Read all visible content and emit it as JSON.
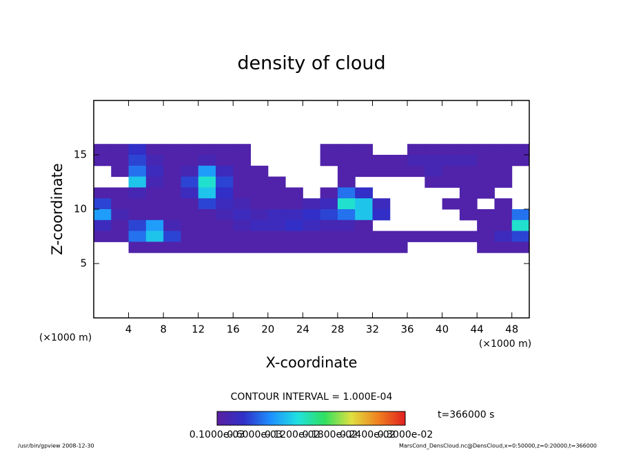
{
  "chart_data": {
    "type": "heatmap",
    "title": "density of cloud",
    "x_label": "X-coordinate",
    "y_label": "Z-coordinate",
    "x_unit": "(×1000 m)",
    "y_unit": "(×1000 m)",
    "contour_note": "CONTOUR INTERVAL = 1.000E-04",
    "time_note": "t=366000 s",
    "footer_left": "/usr/bin/gpview  2008-12-30",
    "footer_right": "MarsCond_DensCloud.nc@DensCloud,x=0:50000,z=0:20000,t=366000",
    "xlim": [
      0,
      50
    ],
    "xticks": [
      4,
      8,
      12,
      16,
      20,
      24,
      28,
      32,
      36,
      40,
      44,
      48
    ],
    "ylim": [
      0,
      20
    ],
    "yticks": [
      5,
      10,
      15
    ],
    "x": [
      1,
      3,
      5,
      7,
      9,
      11,
      13,
      15,
      17,
      19,
      21,
      23,
      25,
      27,
      29,
      31,
      33,
      35,
      37,
      39,
      41,
      43,
      45,
      47,
      49
    ],
    "y": [
      15.5,
      14.5,
      13.5,
      12.5,
      11.5,
      10.5,
      9.5,
      8.5,
      7.5,
      6.5
    ],
    "z": [
      [
        0.0002,
        0.0002,
        0.0005,
        0.0002,
        0.0002,
        0.0002,
        0.0002,
        0.0002,
        0.0002,
        null,
        null,
        null,
        null,
        0.0002,
        0.0002,
        0.0002,
        null,
        null,
        0.0002,
        0.0002,
        0.0002,
        0.0002,
        0.0002,
        0.0002,
        0.0002
      ],
      [
        0.0002,
        0.0002,
        0.0006,
        0.0003,
        0.0002,
        0.0002,
        0.0003,
        0.0002,
        0.0002,
        null,
        null,
        null,
        null,
        0.0002,
        0.0002,
        0.0002,
        0.0002,
        0.0002,
        0.0003,
        0.0003,
        0.0003,
        0.0003,
        0.0002,
        0.0002,
        0.0002
      ],
      [
        null,
        0.0002,
        0.0008,
        0.0004,
        0.0002,
        0.0003,
        0.001,
        0.0004,
        0.0002,
        0.0002,
        null,
        null,
        null,
        null,
        0.0002,
        0.0002,
        0.0002,
        0.0002,
        0.0002,
        0.0003,
        0.0002,
        0.0002,
        0.0002,
        0.0002,
        null
      ],
      [
        null,
        null,
        0.0012,
        0.0003,
        0.0002,
        0.0006,
        0.0014,
        0.0006,
        0.0002,
        0.0002,
        0.0002,
        null,
        null,
        null,
        0.0002,
        null,
        null,
        null,
        null,
        0.0002,
        0.0002,
        0.0002,
        0.0002,
        0.0002,
        null
      ],
      [
        0.0002,
        0.0002,
        0.0003,
        0.0002,
        0.0002,
        0.0004,
        0.0012,
        0.0005,
        0.0002,
        0.0002,
        0.0002,
        0.0002,
        null,
        0.0002,
        0.0008,
        0.0005,
        null,
        null,
        null,
        null,
        null,
        0.0002,
        0.0002,
        null,
        null
      ],
      [
        0.0006,
        0.0002,
        0.0002,
        0.0002,
        0.0002,
        0.0002,
        0.0006,
        0.0004,
        0.0003,
        0.0002,
        0.0002,
        0.0002,
        0.0003,
        0.0004,
        0.0014,
        0.0012,
        0.0004,
        null,
        null,
        null,
        0.0002,
        0.0002,
        null,
        0.0002,
        null
      ],
      [
        0.001,
        0.0003,
        0.0002,
        0.0002,
        0.0002,
        0.0002,
        0.0002,
        0.0003,
        0.0004,
        0.0003,
        0.0004,
        0.0004,
        0.0005,
        0.0006,
        0.0008,
        0.0012,
        0.0005,
        null,
        null,
        null,
        null,
        0.0002,
        0.0002,
        0.0002,
        0.0008
      ],
      [
        0.0004,
        0.0002,
        0.0006,
        0.001,
        0.0003,
        0.0002,
        0.0002,
        0.0002,
        0.0003,
        0.0004,
        0.0004,
        0.0005,
        0.0004,
        0.0003,
        0.0003,
        0.0002,
        null,
        null,
        null,
        null,
        null,
        null,
        0.0002,
        0.0002,
        0.0014
      ],
      [
        0.0002,
        0.0002,
        0.0008,
        0.0012,
        0.0006,
        0.0002,
        0.0002,
        0.0002,
        0.0002,
        0.0002,
        0.0002,
        0.0002,
        0.0002,
        0.0002,
        0.0002,
        0.0002,
        0.0002,
        0.0002,
        0.0002,
        0.0002,
        0.0002,
        0.0002,
        0.0002,
        0.0004,
        0.0006
      ],
      [
        null,
        null,
        0.0002,
        0.0002,
        0.0002,
        0.0002,
        0.0002,
        0.0002,
        0.0002,
        0.0002,
        0.0002,
        0.0002,
        0.0002,
        0.0002,
        0.0002,
        0.0002,
        0.0002,
        0.0002,
        null,
        null,
        null,
        null,
        0.0002,
        0.0002,
        0.0002
      ]
    ],
    "colorscale": [
      "#5a1fa0",
      "#3030c8",
      "#1e90ff",
      "#20e0e0",
      "#30e060",
      "#e0e040",
      "#f08020",
      "#e02020"
    ],
    "colorbar_lim": [
      0.0001,
      0.003
    ],
    "colorbar_labels": [
      "0.1000e-03",
      "0.6000e-03",
      "0.1200e-02",
      "0.1800e-02",
      "0.2400e-02",
      "0.3000e-02"
    ]
  }
}
